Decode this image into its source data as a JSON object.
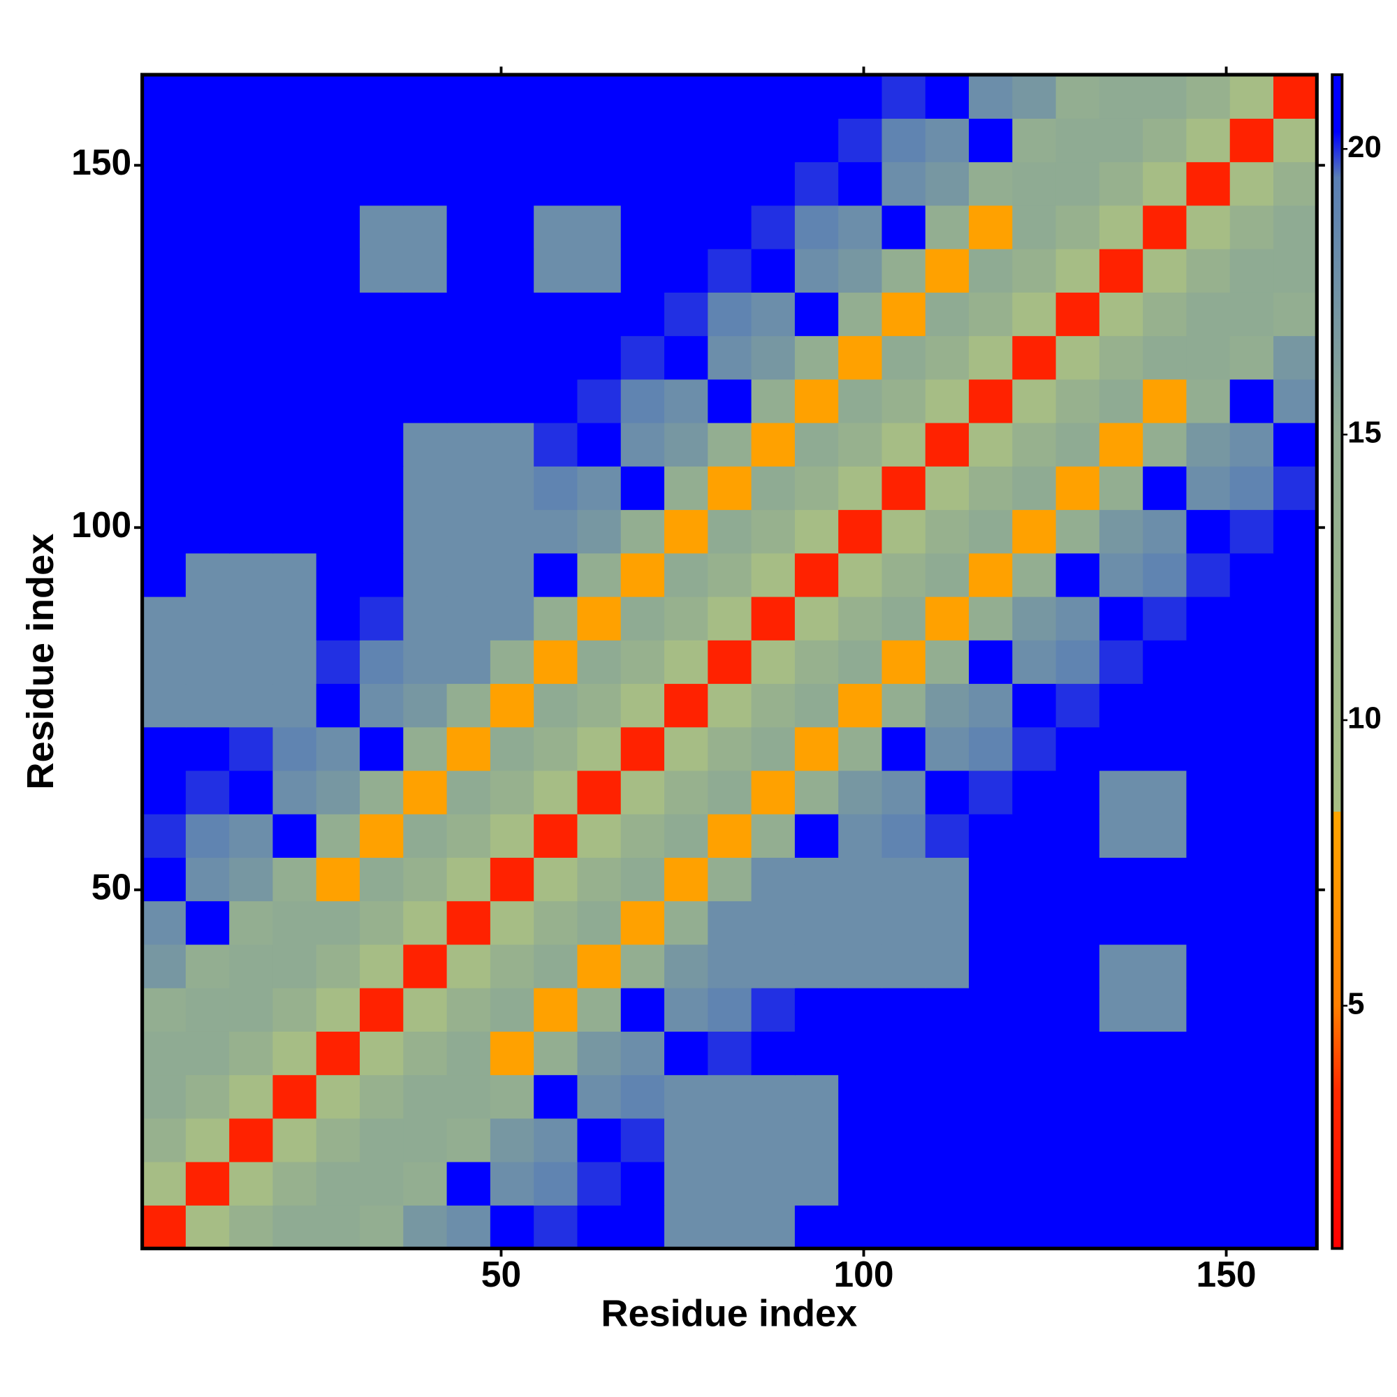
{
  "chart_data": {
    "type": "heatmap",
    "xlabel": "Residue index",
    "ylabel": "Residue index",
    "x": [
      3.5,
      9.5,
      15.5,
      21.5,
      27.5,
      33.5,
      39.5,
      45.5,
      51.5,
      57.5,
      63.5,
      69.5,
      75.5,
      81.5,
      87.5,
      93.5,
      99.5,
      105.5,
      111.5,
      117.5,
      123.5,
      129.5,
      135.5,
      141.5,
      147.5,
      153.5,
      159.5
    ],
    "y": [
      3.5,
      9.5,
      15.5,
      21.5,
      27.5,
      33.5,
      39.5,
      45.5,
      51.5,
      57.5,
      63.5,
      69.5,
      75.5,
      81.5,
      87.5,
      93.5,
      99.5,
      105.5,
      111.5,
      117.5,
      123.5,
      129.5,
      135.5,
      141.5,
      147.5,
      153.5,
      159.5
    ],
    "z": [
      [
        3,
        9,
        13,
        15,
        15,
        14,
        17,
        18,
        21,
        20,
        21,
        21,
        18,
        18,
        18,
        21,
        21,
        21,
        21,
        21,
        21,
        21,
        21,
        21,
        21,
        21,
        21
      ],
      [
        9,
        3,
        9,
        13,
        15,
        15,
        14,
        21,
        18,
        19,
        20,
        21,
        18,
        18,
        18,
        18,
        21,
        21,
        21,
        21,
        21,
        21,
        21,
        21,
        21,
        21,
        21
      ],
      [
        13,
        9,
        3,
        9,
        13,
        15,
        15,
        14,
        17,
        18,
        21,
        20,
        18,
        18,
        18,
        18,
        21,
        21,
        21,
        21,
        21,
        21,
        21,
        21,
        21,
        21,
        21
      ],
      [
        15,
        13,
        9,
        3,
        9,
        13,
        15,
        15,
        14,
        21,
        18,
        19,
        18,
        18,
        18,
        18,
        21,
        21,
        21,
        21,
        21,
        21,
        21,
        21,
        21,
        21,
        21
      ],
      [
        15,
        15,
        13,
        9,
        3,
        9,
        13,
        15,
        8,
        14,
        17,
        18,
        21,
        20,
        21,
        21,
        21,
        21,
        21,
        21,
        21,
        21,
        21,
        21,
        21,
        21,
        21
      ],
      [
        14,
        15,
        15,
        13,
        9,
        3,
        9,
        13,
        15,
        8,
        14,
        21,
        18,
        19,
        20,
        21,
        21,
        21,
        21,
        21,
        21,
        21,
        18,
        18,
        21,
        21,
        21
      ],
      [
        17,
        14,
        15,
        15,
        13,
        9,
        3,
        9,
        13,
        15,
        8,
        14,
        17,
        18,
        18,
        18,
        18,
        18,
        18,
        21,
        21,
        21,
        18,
        18,
        21,
        21,
        21
      ],
      [
        18,
        21,
        14,
        15,
        15,
        13,
        9,
        3,
        9,
        13,
        15,
        8,
        14,
        18,
        18,
        18,
        18,
        18,
        18,
        21,
        21,
        21,
        21,
        21,
        21,
        21,
        21
      ],
      [
        21,
        18,
        17,
        14,
        8,
        15,
        13,
        9,
        3,
        9,
        13,
        15,
        8,
        14,
        18,
        18,
        18,
        18,
        18,
        21,
        21,
        21,
        21,
        21,
        21,
        21,
        21
      ],
      [
        20,
        19,
        18,
        21,
        14,
        8,
        15,
        13,
        9,
        3,
        9,
        13,
        15,
        8,
        14,
        21,
        18,
        19,
        20,
        21,
        21,
        21,
        18,
        18,
        21,
        21,
        21
      ],
      [
        21,
        20,
        21,
        18,
        17,
        14,
        8,
        15,
        13,
        9,
        3,
        9,
        13,
        15,
        8,
        14,
        17,
        18,
        21,
        20,
        21,
        21,
        18,
        18,
        21,
        21,
        21
      ],
      [
        21,
        21,
        20,
        19,
        18,
        21,
        14,
        8,
        15,
        13,
        9,
        3,
        9,
        13,
        15,
        8,
        14,
        21,
        18,
        19,
        20,
        21,
        21,
        21,
        21,
        21,
        21
      ],
      [
        18,
        18,
        18,
        18,
        21,
        18,
        17,
        14,
        8,
        15,
        13,
        9,
        3,
        9,
        13,
        15,
        8,
        14,
        17,
        18,
        21,
        20,
        21,
        21,
        21,
        21,
        21
      ],
      [
        18,
        18,
        18,
        18,
        20,
        19,
        18,
        18,
        14,
        8,
        15,
        13,
        9,
        3,
        9,
        13,
        15,
        8,
        14,
        21,
        18,
        19,
        20,
        21,
        21,
        21,
        21
      ],
      [
        18,
        18,
        18,
        18,
        21,
        20,
        18,
        18,
        18,
        14,
        8,
        15,
        13,
        9,
        3,
        9,
        13,
        15,
        8,
        14,
        17,
        18,
        21,
        20,
        21,
        21,
        21
      ],
      [
        21,
        18,
        18,
        18,
        21,
        21,
        18,
        18,
        18,
        21,
        14,
        8,
        15,
        13,
        9,
        3,
        9,
        13,
        15,
        8,
        14,
        21,
        18,
        19,
        20,
        21,
        21
      ],
      [
        21,
        21,
        21,
        21,
        21,
        21,
        18,
        18,
        18,
        18,
        17,
        14,
        8,
        15,
        13,
        9,
        3,
        9,
        13,
        15,
        8,
        14,
        17,
        18,
        21,
        20,
        21
      ],
      [
        21,
        21,
        21,
        21,
        21,
        21,
        18,
        18,
        18,
        19,
        18,
        21,
        14,
        8,
        15,
        13,
        9,
        3,
        9,
        13,
        15,
        8,
        14,
        21,
        18,
        19,
        20
      ],
      [
        21,
        21,
        21,
        21,
        21,
        21,
        18,
        18,
        18,
        20,
        21,
        18,
        17,
        14,
        8,
        15,
        13,
        9,
        3,
        9,
        13,
        15,
        8,
        14,
        17,
        18,
        21
      ],
      [
        21,
        21,
        21,
        21,
        21,
        21,
        21,
        21,
        21,
        21,
        20,
        19,
        18,
        21,
        14,
        8,
        15,
        13,
        9,
        3,
        9,
        13,
        15,
        8,
        14,
        21,
        18
      ],
      [
        21,
        21,
        21,
        21,
        21,
        21,
        21,
        21,
        21,
        21,
        21,
        20,
        21,
        18,
        17,
        14,
        8,
        15,
        13,
        9,
        3,
        9,
        13,
        15,
        15,
        14,
        17
      ],
      [
        21,
        21,
        21,
        21,
        21,
        21,
        21,
        21,
        21,
        21,
        21,
        21,
        20,
        19,
        18,
        21,
        14,
        8,
        15,
        13,
        9,
        3,
        9,
        13,
        15,
        15,
        14
      ],
      [
        21,
        21,
        21,
        21,
        21,
        18,
        18,
        21,
        21,
        18,
        18,
        21,
        21,
        20,
        21,
        18,
        17,
        14,
        8,
        15,
        13,
        9,
        3,
        9,
        13,
        15,
        15
      ],
      [
        21,
        21,
        21,
        21,
        21,
        18,
        18,
        21,
        21,
        18,
        18,
        21,
        21,
        21,
        20,
        19,
        18,
        21,
        14,
        8,
        15,
        13,
        9,
        3,
        9,
        13,
        15
      ],
      [
        21,
        21,
        21,
        21,
        21,
        21,
        21,
        21,
        21,
        21,
        21,
        21,
        21,
        21,
        21,
        20,
        21,
        18,
        17,
        14,
        15,
        15,
        13,
        9,
        3,
        9,
        13
      ],
      [
        21,
        21,
        21,
        21,
        21,
        21,
        21,
        21,
        21,
        21,
        21,
        21,
        21,
        21,
        21,
        21,
        20,
        19,
        18,
        21,
        14,
        15,
        15,
        13,
        9,
        3,
        9
      ],
      [
        21,
        21,
        21,
        21,
        21,
        21,
        21,
        21,
        21,
        21,
        21,
        21,
        21,
        21,
        21,
        21,
        21,
        20,
        21,
        18,
        17,
        14,
        15,
        15,
        13,
        9,
        3
      ]
    ],
    "xlim": [
      0.5,
      162.5
    ],
    "ylim": [
      0.5,
      162.5
    ],
    "xticks": [
      50,
      100,
      150
    ],
    "yticks": [
      50,
      100,
      150
    ],
    "zlim": [
      0.75,
      21.3
    ],
    "zticks": [
      5,
      10,
      15,
      20
    ],
    "colorscale": [
      [
        0.75,
        "#ff0000"
      ],
      [
        3.5,
        "#ff2a00"
      ],
      [
        5,
        "#ff7f00"
      ],
      [
        8.4,
        "#ffa500"
      ],
      [
        8.4,
        "#a8bf84"
      ],
      [
        15,
        "#8fab93"
      ],
      [
        19.5,
        "#5a7fb5"
      ],
      [
        20.3,
        "#0000ff"
      ],
      [
        21.3,
        "#0000ff"
      ]
    ]
  }
}
